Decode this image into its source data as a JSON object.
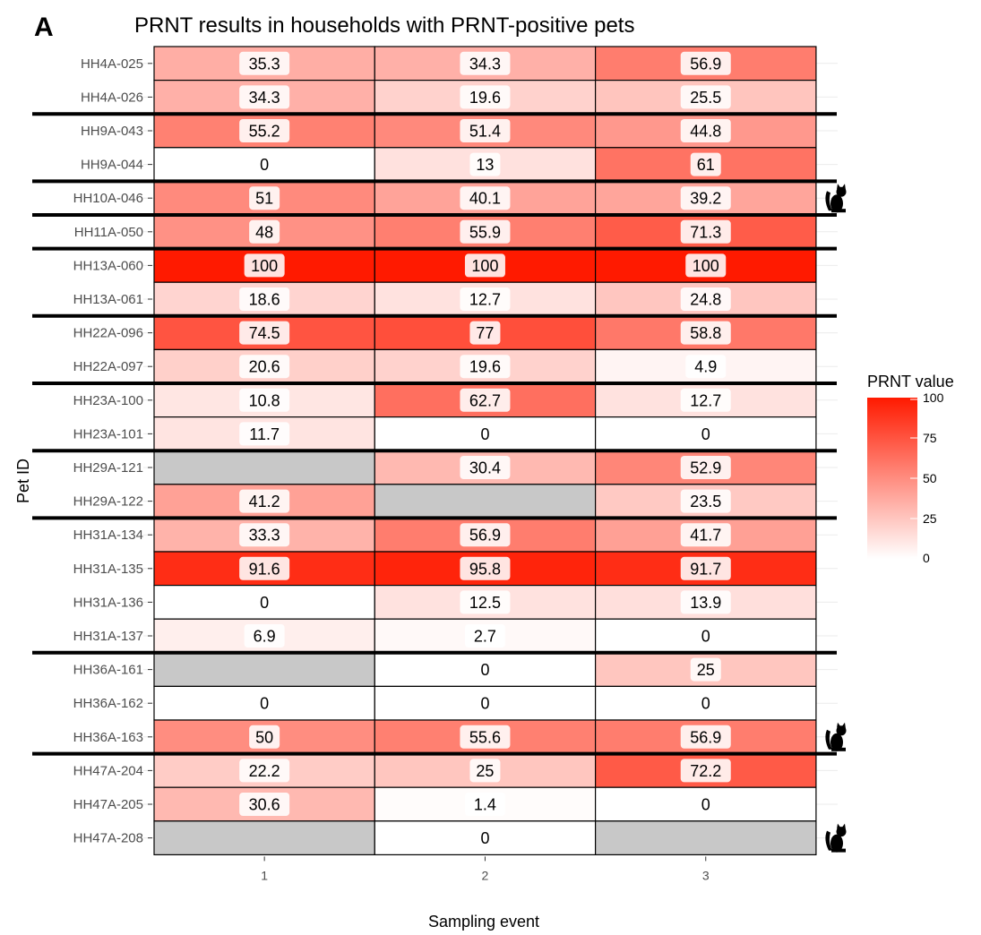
{
  "panel_label": "A",
  "chart_data": {
    "type": "heatmap",
    "title": "PRNT results in households with PRNT-positive pets",
    "xlabel": "Sampling event",
    "ylabel": "Pet ID",
    "x": [
      "1",
      "2",
      "3"
    ],
    "y": [
      "HH4A-025",
      "HH4A-026",
      "HH9A-043",
      "HH9A-044",
      "HH10A-046",
      "HH11A-050",
      "HH13A-060",
      "HH13A-061",
      "HH22A-096",
      "HH22A-097",
      "HH23A-100",
      "HH23A-101",
      "HH29A-121",
      "HH29A-122",
      "HH31A-134",
      "HH31A-135",
      "HH31A-136",
      "HH31A-137",
      "HH36A-161",
      "HH36A-162",
      "HH36A-163",
      "HH47A-204",
      "HH47A-205",
      "HH47A-208"
    ],
    "values": [
      [
        35.3,
        34.3,
        56.9
      ],
      [
        34.3,
        19.6,
        25.5
      ],
      [
        55.2,
        51.4,
        44.8
      ],
      [
        0,
        13,
        61
      ],
      [
        51,
        40.1,
        39.2
      ],
      [
        48,
        55.9,
        71.3
      ],
      [
        100,
        100,
        100
      ],
      [
        18.6,
        12.7,
        24.8
      ],
      [
        74.5,
        77,
        58.8
      ],
      [
        20.6,
        19.6,
        4.9
      ],
      [
        10.8,
        62.7,
        12.7
      ],
      [
        11.7,
        0,
        0
      ],
      [
        null,
        30.4,
        52.9
      ],
      [
        41.2,
        null,
        23.5
      ],
      [
        33.3,
        56.9,
        41.7
      ],
      [
        91.6,
        95.8,
        91.7
      ],
      [
        0,
        12.5,
        13.9
      ],
      [
        6.9,
        2.7,
        0
      ],
      [
        null,
        0,
        25
      ],
      [
        0,
        0,
        0
      ],
      [
        50,
        55.6,
        56.9
      ],
      [
        22.2,
        25,
        72.2
      ],
      [
        30.6,
        1.4,
        0
      ],
      [
        null,
        0,
        null
      ]
    ],
    "missing_color": "#c8c8c8",
    "color_low": "#ffffff",
    "color_high": "#ff1a00",
    "value_range": [
      0,
      100
    ],
    "household_groups": [
      [
        "HH4A-025",
        "HH4A-026"
      ],
      [
        "HH9A-043",
        "HH9A-044"
      ],
      [
        "HH10A-046"
      ],
      [
        "HH11A-050"
      ],
      [
        "HH13A-060",
        "HH13A-061"
      ],
      [
        "HH22A-096",
        "HH22A-097"
      ],
      [
        "HH23A-100",
        "HH23A-101"
      ],
      [
        "HH29A-121",
        "HH29A-122"
      ],
      [
        "HH31A-134",
        "HH31A-135",
        "HH31A-136",
        "HH31A-137"
      ],
      [
        "HH36A-161",
        "HH36A-162",
        "HH36A-163"
      ],
      [
        "HH47A-204",
        "HH47A-205",
        "HH47A-208"
      ]
    ],
    "cat_icon_rows": [
      "HH10A-046",
      "HH36A-163",
      "HH47A-208"
    ],
    "legend": {
      "title": "PRNT value",
      "ticks": [
        100,
        75,
        50,
        25,
        0
      ],
      "placement": "right"
    }
  }
}
